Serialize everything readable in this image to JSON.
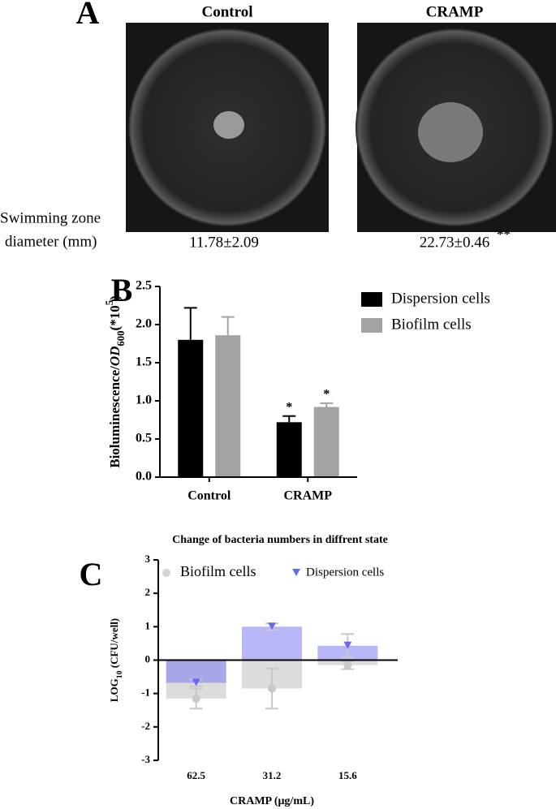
{
  "panel_a": {
    "letter": "A",
    "conditions": [
      "Control",
      "CRAMP"
    ],
    "row_label": [
      "Swimming zone",
      "diameter (mm)"
    ],
    "measurements": [
      "11.78±2.09",
      "22.73±0.46"
    ],
    "significance": "**"
  },
  "chart_data": [
    {
      "type": "bar",
      "panel": "B",
      "categories": [
        "Control",
        "CRAMP"
      ],
      "series": [
        {
          "name": "Dispersion cells",
          "color": "#000000",
          "values": [
            1.8,
            0.72
          ],
          "errors": [
            0.42,
            0.08
          ],
          "annotations": [
            null,
            "*"
          ]
        },
        {
          "name": "Biofilm cells",
          "color": "#a3a3a6",
          "values": [
            1.86,
            0.92
          ],
          "errors": [
            0.24,
            0.05
          ],
          "annotations": [
            null,
            "*"
          ]
        }
      ],
      "ylabel": {
        "text": "Bioluminescence/",
        "italic": "OD",
        "sub": "600",
        "suffix": "(*10",
        "sup": "5",
        "end": ")"
      },
      "ylim": [
        0,
        2.5
      ],
      "yticks": [
        {
          "value": 0,
          "label": "0.0"
        },
        {
          "value": 0.5,
          "label": "0.5"
        },
        {
          "value": 1,
          "label": "1.0"
        },
        {
          "value": 1.5,
          "label": "1.5"
        },
        {
          "value": 2,
          "label": "2.0"
        },
        {
          "value": 2.5,
          "label": "2.5"
        }
      ],
      "legend": "right"
    },
    {
      "type": "bar",
      "panel": "C",
      "title": "Change of bacteria numbers in diffrent state",
      "categories": [
        "62.5",
        "31.2",
        "15.6"
      ],
      "series": [
        {
          "name": "Biofilm cells",
          "color": "#dcdcdc",
          "marker": "circle",
          "values": [
            -1.15,
            -0.85,
            -0.15
          ],
          "errors": [
            0.3,
            0.6,
            0.12
          ]
        },
        {
          "name": "Dispersion cells",
          "color": "#7b7bf2",
          "marker": "triangle",
          "values": [
            -0.68,
            1.0,
            0.43
          ],
          "errors": [
            0.1,
            0.1,
            0.35
          ]
        }
      ],
      "xlabel": "CRAMP (μg/mL)",
      "ylabel": {
        "text": "LOG",
        "sub": "10",
        "suffix": " (CFU/well)"
      },
      "ylim": [
        -3,
        3
      ],
      "yticks": [
        -3,
        -2,
        -1,
        0,
        1,
        2,
        3
      ],
      "legend": "top"
    }
  ]
}
